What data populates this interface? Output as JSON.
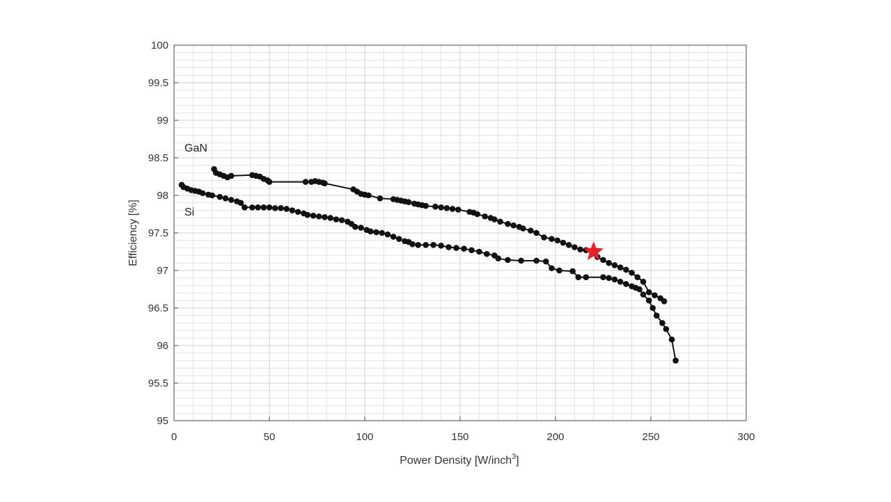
{
  "chart_data": {
    "type": "line",
    "title": "",
    "xlabel": "Power Density [W/inch",
    "xlabel_sup": "3",
    "xlabel_suffix": "]",
    "ylabel": "Efficiency [%]",
    "xlim": [
      0,
      300
    ],
    "ylim": [
      95,
      100
    ],
    "x_ticks": [
      "0",
      "50",
      "100",
      "150",
      "200",
      "250",
      "300"
    ],
    "y_ticks": [
      "95",
      "95.5",
      "96",
      "96.5",
      "97",
      "97.5",
      "98",
      "98.5",
      "99",
      "99.5",
      "100"
    ],
    "grid": true,
    "minor_grid": true,
    "series": [
      {
        "name": "GaN",
        "color": "#111111",
        "x": [
          21,
          22,
          24,
          26,
          28,
          30,
          41,
          43,
          45,
          47,
          49,
          50,
          69,
          72,
          74,
          76,
          78,
          79,
          94,
          96,
          98,
          100,
          102,
          108,
          115,
          117,
          119,
          121,
          123,
          126,
          128,
          130,
          132,
          137,
          140,
          143,
          146,
          149,
          155,
          157,
          159,
          163,
          166,
          168,
          171,
          175,
          178,
          181,
          183,
          187,
          190,
          194,
          198,
          201,
          204,
          207,
          210,
          213,
          216,
          219,
          222,
          225,
          228,
          231,
          234,
          237,
          240,
          243,
          246,
          249,
          252,
          255,
          257
        ],
        "y": [
          98.35,
          98.3,
          98.28,
          98.26,
          98.24,
          98.26,
          98.27,
          98.26,
          98.25,
          98.22,
          98.2,
          98.18,
          98.18,
          98.18,
          98.19,
          98.18,
          98.17,
          98.16,
          98.08,
          98.05,
          98.02,
          98.01,
          98.0,
          97.96,
          97.95,
          97.94,
          97.93,
          97.92,
          97.91,
          97.89,
          97.88,
          97.87,
          97.86,
          97.85,
          97.84,
          97.83,
          97.82,
          97.81,
          97.78,
          97.77,
          97.75,
          97.72,
          97.7,
          97.68,
          97.65,
          97.62,
          97.6,
          97.58,
          97.56,
          97.53,
          97.5,
          97.44,
          97.42,
          97.4,
          97.37,
          97.34,
          97.31,
          97.28,
          97.27,
          97.25,
          97.18,
          97.14,
          97.1,
          97.07,
          97.04,
          97.01,
          96.97,
          96.91,
          96.85,
          96.71,
          96.67,
          96.63,
          96.59
        ]
      },
      {
        "name": "Si",
        "color": "#111111",
        "x": [
          4,
          5,
          7,
          9,
          11,
          13,
          15,
          18,
          20,
          24,
          27,
          30,
          33,
          35,
          37,
          41,
          44,
          47,
          50,
          53,
          56,
          59,
          62,
          65,
          68,
          70,
          73,
          76,
          79,
          82,
          85,
          88,
          91,
          93,
          95,
          98,
          101,
          103,
          106,
          109,
          112,
          115,
          118,
          121,
          123,
          125,
          128,
          132,
          136,
          140,
          144,
          148,
          152,
          156,
          160,
          164,
          168,
          170,
          175,
          182,
          190,
          195,
          198,
          202,
          209,
          212,
          216,
          225,
          228,
          231,
          234,
          237,
          240,
          242,
          244,
          246,
          249,
          251,
          253,
          256,
          258,
          261,
          263
        ],
        "y": [
          98.14,
          98.11,
          98.09,
          98.07,
          98.06,
          98.05,
          98.03,
          98.01,
          98.0,
          97.98,
          97.96,
          97.94,
          97.92,
          97.9,
          97.84,
          97.84,
          97.84,
          97.84,
          97.84,
          97.83,
          97.83,
          97.82,
          97.8,
          97.78,
          97.76,
          97.74,
          97.73,
          97.72,
          97.71,
          97.7,
          97.68,
          97.67,
          97.65,
          97.62,
          97.58,
          97.57,
          97.54,
          97.52,
          97.51,
          97.5,
          97.48,
          97.45,
          97.42,
          97.39,
          97.38,
          97.35,
          97.34,
          97.34,
          97.34,
          97.33,
          97.31,
          97.3,
          97.29,
          97.27,
          97.25,
          97.22,
          97.2,
          97.16,
          97.14,
          97.13,
          97.13,
          97.12,
          97.03,
          97.0,
          96.99,
          96.91,
          96.91,
          96.91,
          96.9,
          96.88,
          96.85,
          96.82,
          96.79,
          96.77,
          96.75,
          96.68,
          96.6,
          96.5,
          96.4,
          96.3,
          96.22,
          96.08,
          95.8
        ]
      }
    ],
    "annotations": [
      {
        "type": "star",
        "x": 220,
        "y": 97.25,
        "color": "#e8202a"
      }
    ]
  }
}
